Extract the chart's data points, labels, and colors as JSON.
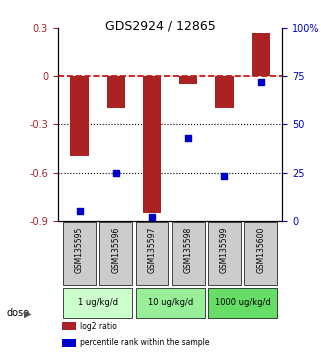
{
  "title": "GDS2924 / 12865",
  "samples": [
    "GSM135595",
    "GSM135596",
    "GSM135597",
    "GSM135598",
    "GSM135599",
    "GSM135600"
  ],
  "log2_ratio": [
    -0.5,
    -0.2,
    -0.85,
    -0.05,
    -0.2,
    0.27
  ],
  "percentile_rank": [
    5,
    25,
    2,
    43,
    23,
    72
  ],
  "ylim_left": [
    -0.9,
    0.3
  ],
  "ylim_right": [
    0,
    100
  ],
  "yticks_left": [
    -0.9,
    -0.6,
    -0.3,
    0.0,
    0.3
  ],
  "yticks_right": [
    0,
    25,
    50,
    75,
    100
  ],
  "ytick_labels_left": [
    "-0.9",
    "-0.6",
    "-0.3",
    "0",
    "0.3"
  ],
  "ytick_labels_right": [
    "0",
    "25",
    "50",
    "75",
    "100%"
  ],
  "dose_groups": [
    {
      "label": "1 ug/kg/d",
      "samples": [
        "GSM135595",
        "GSM135596"
      ],
      "color": "#ccffcc"
    },
    {
      "label": "10 ug/kg/d",
      "samples": [
        "GSM135597",
        "GSM135598"
      ],
      "color": "#99ee99"
    },
    {
      "label": "1000 ug/kg/d",
      "samples": [
        "GSM135599",
        "GSM135600"
      ],
      "color": "#66dd66"
    }
  ],
  "bar_color": "#aa2222",
  "dot_color": "#0000cc",
  "hline_color": "#cc0000",
  "hline_style": "--",
  "dotted_line_color": "#000000",
  "bg_color": "#ffffff",
  "sample_bg_color": "#cccccc",
  "dose_label": "dose",
  "legend_items": [
    {
      "label": "log2 ratio",
      "color": "#aa2222"
    },
    {
      "label": "percentile rank within the sample",
      "color": "#0000cc"
    }
  ]
}
